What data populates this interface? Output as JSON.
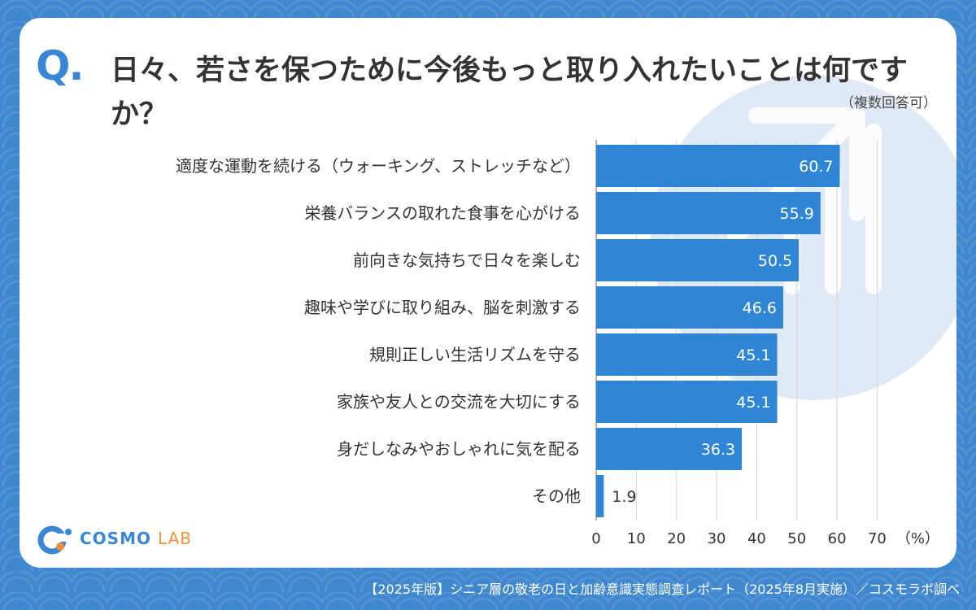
{
  "question_mark": "Q.",
  "title": "日々、若さを保つために今後もっと取り入れたいことは何ですか？",
  "note": "（複数回答可）",
  "brand": {
    "name_part1": "COSMO",
    "name_part2": "LAB"
  },
  "footer": "【2025年版】シニア層の敬老の日と加齢意識実態調査レポート（2025年8月実施）／コスモラボ調べ",
  "colors": {
    "bar": "#2f86d6",
    "background": "#3f87cf",
    "accent": "#3a86d6",
    "brand_orange": "#f0903a"
  },
  "chart_data": {
    "type": "bar",
    "orientation": "horizontal",
    "categories": [
      "適度な運動を続ける（ウォーキング、ストレッチなど）",
      "栄養バランスの取れた食事を心がける",
      "前向きな気持ちで日々を楽しむ",
      "趣味や学びに取り組み、脳を刺激する",
      "規則正しい生活リズムを守る",
      "家族や友人との交流を大切にする",
      "身だしなみやおしゃれに気を配る",
      "その他"
    ],
    "values": [
      60.7,
      55.9,
      50.5,
      46.6,
      45.1,
      45.1,
      36.3,
      1.9
    ],
    "value_labels": [
      "60.7",
      "55.9",
      "50.5",
      "46.6",
      "45.1",
      "45.1",
      "36.3",
      "1.9"
    ],
    "xlim": [
      0,
      70
    ],
    "xticks": [
      "0",
      "10",
      "20",
      "30",
      "40",
      "50",
      "60",
      "70"
    ],
    "unit": "（%）",
    "grid": true
  }
}
